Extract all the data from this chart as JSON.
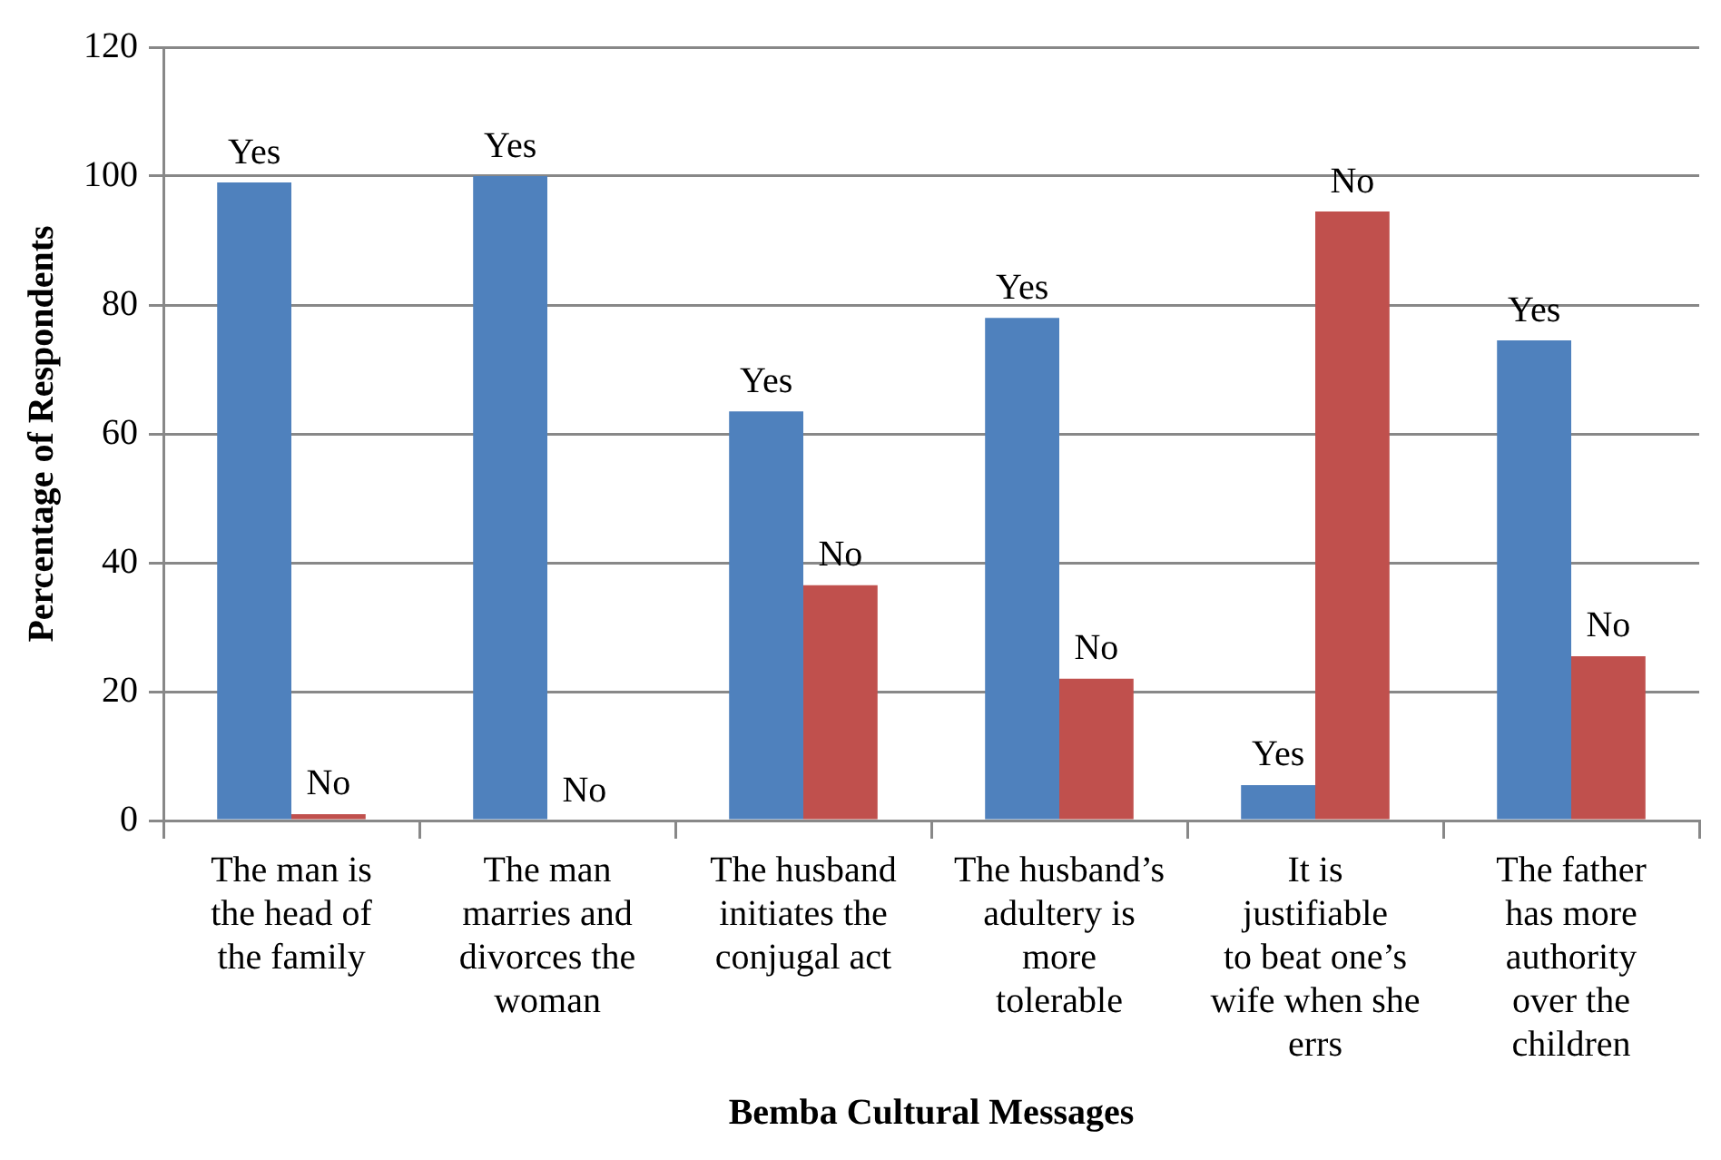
{
  "chart_data": {
    "type": "bar",
    "xlabel": "Bemba Cultural Messages",
    "ylabel": "Percentage of Respondents",
    "categories": [
      "The man is the head of the family",
      "The man marries and divorces the woman",
      "The husband initiates the conjugal act",
      "The husband’s adultery is more tolerable",
      "It is justifiable to beat one’s wife when she errs",
      "The father has more authority over the children"
    ],
    "series": [
      {
        "name": "Yes",
        "color": "#4f81bd",
        "values": [
          99,
          100,
          63.5,
          78,
          5.5,
          74.5
        ]
      },
      {
        "name": "No",
        "color": "#c0504d",
        "values": [
          1,
          0,
          36.5,
          22,
          94.5,
          25.5
        ]
      }
    ],
    "ylim": [
      0,
      120
    ],
    "yticks": [
      0,
      20,
      40,
      60,
      80,
      100,
      120
    ],
    "grid": "y",
    "legend": false
  }
}
